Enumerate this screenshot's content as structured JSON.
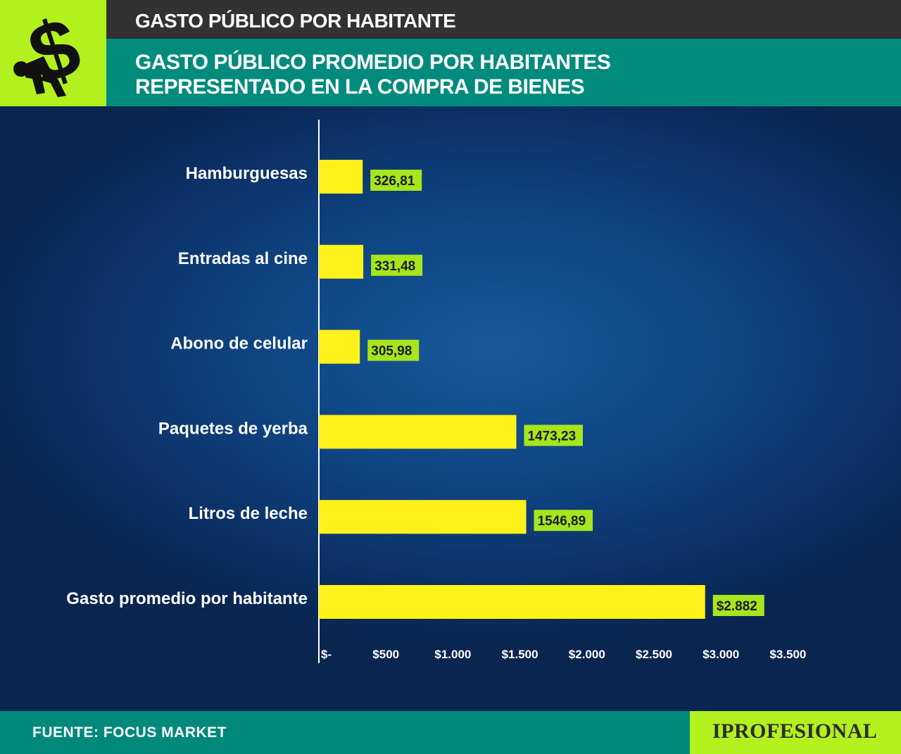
{
  "header": {
    "kicker": "GASTO PÚBLICO POR HABITANTE",
    "headline": "GASTO PÚBLICO PROMEDIO POR HABITANTES\nREPRESENTADO EN LA COMPRA DE BIENES"
  },
  "footer": {
    "source": "FUENTE: FOCUS MARKET",
    "brand": "IPROFESIONAL"
  },
  "colors": {
    "bar": "#fff21a",
    "value_label_bg": "#a7e51c",
    "accent_green": "#b2f01e",
    "teal": "#008b7c",
    "dark_bar": "#323232"
  },
  "icons": {
    "logo": "person-carrying-dollar-sign-icon"
  },
  "chart_data": {
    "type": "bar",
    "orientation": "horizontal",
    "categories": [
      "Hamburguesas",
      "Entradas al cine",
      "Abono de celular",
      "Paquetes de yerba",
      "Litros de leche",
      "Gasto promedio por habitante"
    ],
    "values": [
      326.81,
      331.48,
      305.98,
      1473.23,
      1546.89,
      2882
    ],
    "value_labels": [
      "326,81",
      "331,48",
      "305,98",
      "1473,23",
      "1546,89",
      "$2.882"
    ],
    "xlim": [
      0,
      3500
    ],
    "xticks": [
      0,
      500,
      1000,
      1500,
      2000,
      2500,
      3000,
      3500
    ],
    "xtick_labels": [
      "$-",
      "$500",
      "$1.000",
      "$1.500",
      "$2.000",
      "$2.500",
      "$3.000",
      "$3.500"
    ],
    "grid": false,
    "legend": "none"
  }
}
